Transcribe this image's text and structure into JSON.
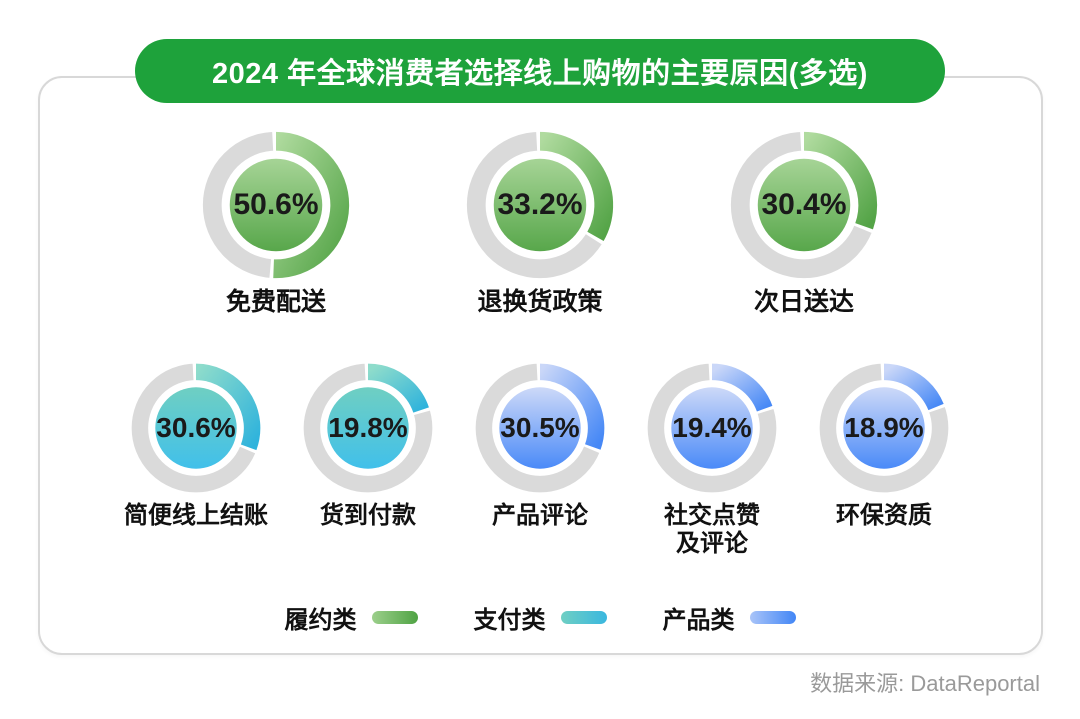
{
  "title": "2024 年全球消费者选择线上购物的主要原因(多选)",
  "source": "数据来源: DataReportal",
  "legend": [
    {
      "label": "履约类",
      "category": "fulfillment"
    },
    {
      "label": "支付类",
      "category": "payment"
    },
    {
      "label": "产品类",
      "category": "product"
    }
  ],
  "palette": {
    "title_pill_bg": "#1ea23b",
    "title_text": "#ffffff",
    "ring_track": "#dadada",
    "fulfillment": {
      "arc": [
        "#b0db9f",
        "#54a447"
      ],
      "inner": [
        "#a6d496",
        "#58a74b"
      ],
      "swatch": [
        "#9ccf8b",
        "#4fa344"
      ]
    },
    "payment": {
      "arc": [
        "#8edccb",
        "#2fb3dc"
      ],
      "inner": [
        "#6fcfc2",
        "#41c0ea"
      ],
      "swatch": [
        "#6fcfc3",
        "#3ab7df"
      ]
    },
    "product": {
      "arc": [
        "#cad7f8",
        "#4688f6"
      ],
      "inner": [
        "#cdd9f8",
        "#4a8af8"
      ],
      "swatch": [
        "#a9c4f8",
        "#4286f6"
      ]
    }
  },
  "chart_data": {
    "type": "donut",
    "title": "2024 年全球消费者选择线上购物的主要原因(多选)",
    "unit": "%",
    "legend_categories": [
      "履约类",
      "支付类",
      "产品类"
    ],
    "rows": [
      [
        {
          "label": "免费配送",
          "value": 50.6,
          "display": "50.6%",
          "category": "fulfillment"
        },
        {
          "label": "退换货政策",
          "value": 33.2,
          "display": "33.2%",
          "category": "fulfillment"
        },
        {
          "label": "次日送达",
          "value": 30.4,
          "display": "30.4%",
          "category": "fulfillment"
        }
      ],
      [
        {
          "label": "简便线上结账",
          "value": 30.6,
          "display": "30.6%",
          "category": "payment"
        },
        {
          "label": "货到付款",
          "value": 19.8,
          "display": "19.8%",
          "category": "payment"
        },
        {
          "label": "产品评论",
          "value": 30.5,
          "display": "30.5%",
          "category": "product"
        },
        {
          "label": "社交点赞\n及评论",
          "value": 19.4,
          "display": "19.4%",
          "category": "product"
        },
        {
          "label": "环保资质",
          "value": 18.9,
          "display": "18.9%",
          "category": "product"
        }
      ]
    ]
  }
}
